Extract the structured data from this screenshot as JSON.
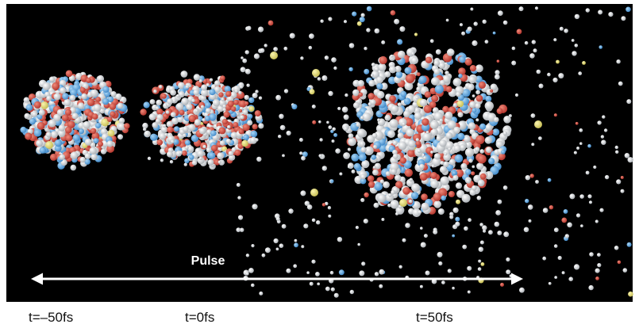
{
  "figure": {
    "pulse_label": "Pulse",
    "time_labels": [
      "t=–50fs",
      "t=0fs",
      "t=50fs"
    ]
  }
}
